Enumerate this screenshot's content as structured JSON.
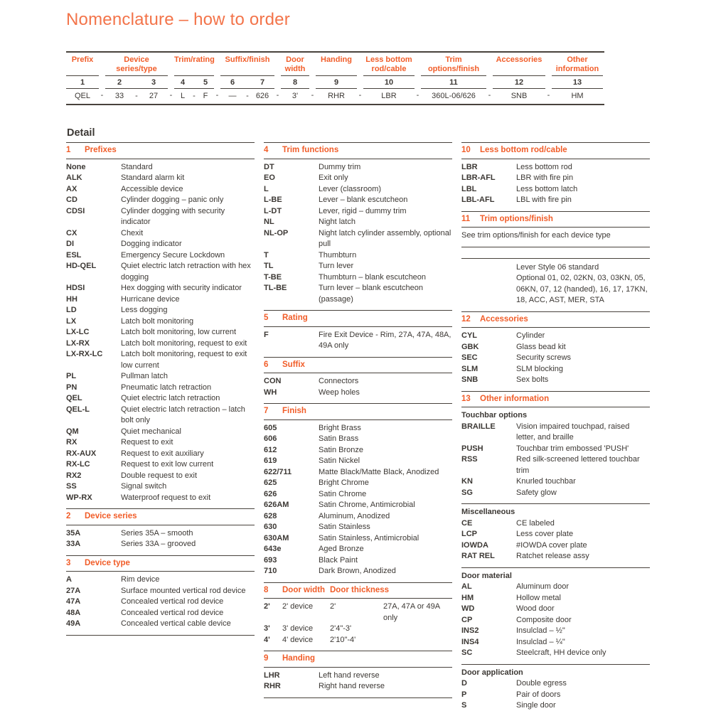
{
  "page_title": "Nomenclature – how to order",
  "colors": {
    "accent_orange": "#f15d29",
    "title_orange": "#f3744a",
    "text_dark": "#3c3834"
  },
  "order_table": {
    "separator": "-",
    "groups": [
      {
        "label": "Prefix",
        "cols": [
          {
            "num": "1",
            "value": "QEL"
          }
        ]
      },
      {
        "label": "Device series/type",
        "cols": [
          {
            "num": "2",
            "value": "33"
          },
          {
            "num": "3",
            "value": "27"
          }
        ]
      },
      {
        "label": "Trim/rating",
        "cols": [
          {
            "num": "4",
            "value": "L"
          },
          {
            "num": "5",
            "value": "F"
          }
        ]
      },
      {
        "label": "Suffix/finish",
        "cols": [
          {
            "num": "6",
            "value": "—"
          },
          {
            "num": "7",
            "value": "626"
          }
        ]
      },
      {
        "label": "Door width",
        "cols": [
          {
            "num": "8",
            "value": "3'"
          }
        ]
      },
      {
        "label": "Handing",
        "cols": [
          {
            "num": "9",
            "value": "RHR"
          }
        ]
      },
      {
        "label": "Less bottom rod/cable",
        "cols": [
          {
            "num": "10",
            "value": "LBR"
          }
        ]
      },
      {
        "label": "Trim options/finish",
        "cols": [
          {
            "num": "11",
            "value": "360L-06/626"
          }
        ]
      },
      {
        "label": "Accessories",
        "cols": [
          {
            "num": "12",
            "value": "SNB"
          }
        ]
      },
      {
        "label": "Other information",
        "cols": [
          {
            "num": "13",
            "value": "HM"
          }
        ]
      }
    ]
  },
  "detail": {
    "heading": "Detail",
    "columns": [
      [
        {
          "type": "list",
          "num": "1",
          "title": "Prefixes",
          "rows": [
            {
              "code": "None",
              "desc": "Standard"
            },
            {
              "code": "ALK",
              "desc": "Standard alarm kit"
            },
            {
              "code": "AX",
              "desc": "Accessible device"
            },
            {
              "code": "CD",
              "desc": "Cylinder dogging – panic only"
            },
            {
              "code": "CDSI",
              "desc": "Cylinder dogging with security indicator"
            },
            {
              "code": "CX",
              "desc": "Chexit"
            },
            {
              "code": "DI",
              "desc": "Dogging indicator"
            },
            {
              "code": "ESL",
              "desc": "Emergency Secure Lockdown"
            },
            {
              "code": "HD-QEL",
              "desc": "Quiet electric latch retraction with hex dogging"
            },
            {
              "code": "HDSI",
              "desc": "Hex dogging with security indicator"
            },
            {
              "code": "HH",
              "desc": "Hurricane device"
            },
            {
              "code": "LD",
              "desc": "Less dogging"
            },
            {
              "code": "LX",
              "desc": "Latch bolt monitoring"
            },
            {
              "code": "LX-LC",
              "desc": "Latch bolt monitoring, low current"
            },
            {
              "code": "LX-RX",
              "desc": "Latch bolt monitoring, request to exit"
            },
            {
              "code": "LX-RX-LC",
              "desc": "Latch bolt monitoring, request to exit low current"
            },
            {
              "code": "PL",
              "desc": "Pullman latch"
            },
            {
              "code": "PN",
              "desc": "Pneumatic latch retraction"
            },
            {
              "code": "QEL",
              "desc": "Quiet electric latch retraction"
            },
            {
              "code": "QEL-L",
              "desc": "Quiet electric latch retraction – latch bolt only"
            },
            {
              "code": "QM",
              "desc": "Quiet mechanical"
            },
            {
              "code": "RX",
              "desc": "Request to exit"
            },
            {
              "code": "RX-AUX",
              "desc": "Request to exit auxiliary"
            },
            {
              "code": "RX-LC",
              "desc": "Request to exit low current"
            },
            {
              "code": "RX2",
              "desc": "Double request to exit"
            },
            {
              "code": "SS",
              "desc": "Signal switch"
            },
            {
              "code": "WP-RX",
              "desc": "Waterproof request to exit"
            }
          ]
        },
        {
          "type": "list",
          "num": "2",
          "title": "Device series",
          "rows": [
            {
              "code": "35A",
              "desc": "Series 35A – smooth"
            },
            {
              "code": "33A",
              "desc": "Series 33A – grooved"
            }
          ]
        },
        {
          "type": "list",
          "num": "3",
          "title": "Device type",
          "rows": [
            {
              "code": "A",
              "desc": "Rim device"
            },
            {
              "code": "27A",
              "desc": "Surface mounted vertical rod device"
            },
            {
              "code": "47A",
              "desc": "Concealed vertical rod device"
            },
            {
              "code": "48A",
              "desc": "Concealed vertical rod device"
            },
            {
              "code": "49A",
              "desc": "Concealed vertical cable device"
            }
          ]
        }
      ],
      [
        {
          "type": "list",
          "num": "4",
          "title": "Trim functions",
          "rows": [
            {
              "code": "DT",
              "desc": "Dummy trim"
            },
            {
              "code": "EO",
              "desc": "Exit only"
            },
            {
              "code": "L",
              "desc": "Lever (classroom)"
            },
            {
              "code": "L-BE",
              "desc": "Lever – blank escutcheon"
            },
            {
              "code": "L-DT",
              "desc": "Lever, rigid – dummy trim"
            },
            {
              "code": "NL",
              "desc": "Night latch"
            },
            {
              "code": "NL-OP",
              "desc": "Night latch cylinder assembly, optional pull"
            },
            {
              "code": "T",
              "desc": "Thumbturn"
            },
            {
              "code": "TL",
              "desc": "Turn lever"
            },
            {
              "code": "T-BE",
              "desc": "Thumbturn – blank escutcheon"
            },
            {
              "code": "TL-BE",
              "desc": "Turn lever – blank escutcheon (passage)"
            }
          ]
        },
        {
          "type": "list",
          "num": "5",
          "title": "Rating",
          "rows": [
            {
              "code": "F",
              "desc": "Fire Exit Device - Rim, 27A, 47A, 48A, 49A only"
            }
          ]
        },
        {
          "type": "list",
          "num": "6",
          "title": "Suffix",
          "rows": [
            {
              "code": "CON",
              "desc": "Connectors"
            },
            {
              "code": "WH",
              "desc": "Weep holes"
            }
          ]
        },
        {
          "type": "list",
          "num": "7",
          "title": "Finish",
          "rows": [
            {
              "code": "605",
              "desc": "Bright Brass"
            },
            {
              "code": "606",
              "desc": "Satin Brass"
            },
            {
              "code": "612",
              "desc": "Satin Bronze"
            },
            {
              "code": "619",
              "desc": "Satin Nickel"
            },
            {
              "code": "622/711",
              "desc": "Matte Black/Matte Black, Anodized"
            },
            {
              "code": "625",
              "desc": "Bright Chrome"
            },
            {
              "code": "626",
              "desc": "Satin Chrome"
            },
            {
              "code": "626AM",
              "desc": "Satin Chrome, Antimicrobial"
            },
            {
              "code": "628",
              "desc": "Aluminum, Anodized"
            },
            {
              "code": "630",
              "desc": "Satin Stainless"
            },
            {
              "code": "630AM",
              "desc": "Satin Stainless, Antimicrobial"
            },
            {
              "code": "643e",
              "desc": "Aged Bronze"
            },
            {
              "code": "693",
              "desc": "Black Paint"
            },
            {
              "code": "710",
              "desc": "Dark Brown, Anodized"
            }
          ]
        },
        {
          "type": "door",
          "num": "8",
          "title": "Door width",
          "title2": "Door thickness",
          "rows": [
            {
              "code": "2'",
              "desc": "2' device",
              "thickness": "2'",
              "note": "27A, 47A or 49A only"
            },
            {
              "code": "3'",
              "desc": "3' device",
              "thickness": "2'4\"-3'"
            },
            {
              "code": "4'",
              "desc": "4' device",
              "thickness": "2'10\"-4'"
            }
          ]
        },
        {
          "type": "list",
          "num": "9",
          "title": "Handing",
          "rows": [
            {
              "code": "LHR",
              "desc": "Left hand reverse"
            },
            {
              "code": "RHR",
              "desc": "Right hand reverse"
            }
          ]
        }
      ],
      [
        {
          "type": "list",
          "num": "10",
          "title": "Less bottom rod/cable",
          "rows": [
            {
              "code": "LBR",
              "desc": "Less bottom rod"
            },
            {
              "code": "LBR-AFL",
              "desc": "LBR with fire pin"
            },
            {
              "code": "LBL",
              "desc": "Less bottom latch"
            },
            {
              "code": "LBL-AFL",
              "desc": "LBL with fire pin"
            }
          ]
        },
        {
          "type": "note",
          "num": "11",
          "title": "Trim options/finish",
          "note": "See trim options/finish for each device type",
          "extra_lines": [
            "Lever Style 06 standard",
            "Optional 01, 02, 02KN, 03, 03KN, 05, 06KN, 07, 12 (handed), 16, 17, 17KN, 18, ACC, AST, MER, STA"
          ]
        },
        {
          "type": "list",
          "num": "12",
          "title": "Accessories",
          "rows": [
            {
              "code": "CYL",
              "desc": "Cylinder"
            },
            {
              "code": "GBK",
              "desc": "Glass bead kit"
            },
            {
              "code": "SEC",
              "desc": "Security screws"
            },
            {
              "code": "SLM",
              "desc": "SLM blocking"
            },
            {
              "code": "SNB",
              "desc": "Sex bolts"
            }
          ]
        },
        {
          "type": "groups",
          "num": "13",
          "title": "Other information",
          "subsections": [
            {
              "title": "Touchbar options",
              "rows": [
                {
                  "code": "BRAILLE",
                  "desc": "Vision impaired touchpad, raised letter, and braille"
                },
                {
                  "code": "PUSH",
                  "desc": "Touchbar trim embossed 'PUSH'"
                },
                {
                  "code": "RSS",
                  "desc": "Red silk-screened lettered touchbar trim"
                },
                {
                  "code": "KN",
                  "desc": "Knurled touchbar"
                },
                {
                  "code": "SG",
                  "desc": "Safety glow"
                }
              ]
            },
            {
              "title": "Miscellaneous",
              "rows": [
                {
                  "code": "CE",
                  "desc": "CE labeled"
                },
                {
                  "code": "LCP",
                  "desc": "Less cover plate"
                },
                {
                  "code": "IOWDA",
                  "desc": "#IOWDA cover plate"
                },
                {
                  "code": "RAT REL",
                  "desc": "Ratchet release assy"
                }
              ]
            },
            {
              "title": "Door material",
              "rows": [
                {
                  "code": "AL",
                  "desc": "Aluminum door"
                },
                {
                  "code": "HM",
                  "desc": "Hollow metal"
                },
                {
                  "code": "WD",
                  "desc": "Wood door"
                },
                {
                  "code": "CP",
                  "desc": "Composite door"
                },
                {
                  "code": "INS2",
                  "desc": "Insulclad – ½\""
                },
                {
                  "code": "INS4",
                  "desc": "Insulclad – ¼\""
                },
                {
                  "code": "SC",
                  "desc": "Steelcraft, HH device only"
                }
              ]
            },
            {
              "title": "Door application",
              "rows": [
                {
                  "code": "D",
                  "desc": "Double egress"
                },
                {
                  "code": "P",
                  "desc": "Pair of doors"
                },
                {
                  "code": "S",
                  "desc": "Single door"
                }
              ]
            }
          ]
        }
      ]
    ]
  }
}
